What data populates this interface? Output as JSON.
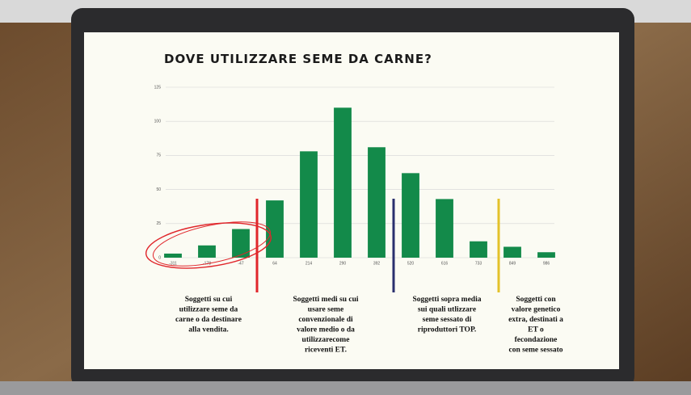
{
  "chart_data": {
    "type": "bar",
    "title": "DOVE UTILIZZARE SEME DA CARNE?",
    "categories": [
      "-311",
      "-178",
      "-47",
      "64",
      "214",
      "290",
      "392",
      "520",
      "616",
      "733",
      "849",
      "986"
    ],
    "values": [
      3,
      9,
      21,
      42,
      78,
      110,
      81,
      62,
      43,
      12,
      8,
      4
    ],
    "color": "#138a4a",
    "ylim": [
      0,
      125
    ],
    "yticks": [
      0,
      25,
      50,
      75,
      100,
      125
    ],
    "grid": true,
    "annotations": [
      [
        "Soggetti su cui",
        "utilizzare seme da",
        "carne o da destinare",
        "alla vendita."
      ],
      [
        "Soggetti medi su cui",
        "usare seme",
        "convenzionale di",
        "valore medio o da",
        "utilizzarecome",
        "riceventi ET."
      ],
      [
        "Soggetti sopra media",
        "sui quali utlizzare",
        "seme sessato di",
        "riproduttori TOP."
      ],
      [
        "Soggetti con",
        "valore genetico",
        "extra, destinati a",
        "ET  o",
        "fecondazione",
        "con seme sessato"
      ]
    ]
  }
}
